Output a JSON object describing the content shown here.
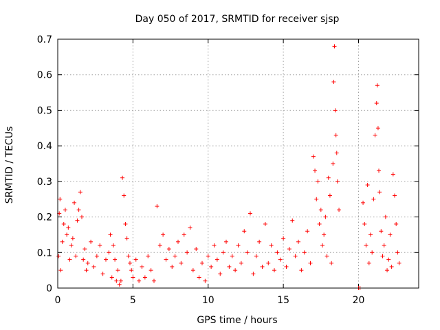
{
  "chart_data": {
    "type": "scatter",
    "title": "Day 050 of 2017, SRMTID for receiver sjsp",
    "xlabel": "GPS time / hours",
    "ylabel": "SRMTID / TECUs",
    "xlim": [
      0,
      24
    ],
    "ylim": [
      0,
      0.7
    ],
    "xticks": [
      0,
      5,
      10,
      15,
      20
    ],
    "yticks": [
      0,
      0.1,
      0.2,
      0.3,
      0.4,
      0.5,
      0.6,
      0.7
    ],
    "xtick_labels": [
      "0",
      "5",
      "10",
      "15",
      "20"
    ],
    "ytick_labels": [
      "0",
      "0.1",
      "0.2",
      "0.3",
      "0.4",
      "0.5",
      "0.6",
      "0.7"
    ],
    "marker": "+",
    "marker_color": "#ff0000",
    "grid": true,
    "series": [
      {
        "name": "SRMTID",
        "x": [
          0.05,
          0.1,
          0.15,
          0.2,
          0.3,
          0.4,
          0.5,
          0.6,
          0.7,
          0.8,
          0.9,
          1.0,
          1.1,
          1.2,
          1.3,
          1.4,
          1.5,
          1.6,
          1.7,
          1.8,
          1.9,
          2.0,
          2.2,
          2.4,
          2.6,
          2.8,
          3.0,
          3.2,
          3.4,
          3.5,
          3.6,
          3.7,
          3.8,
          3.9,
          4.0,
          4.1,
          4.2,
          4.3,
          4.4,
          4.5,
          4.6,
          4.7,
          4.8,
          4.9,
          5.0,
          5.2,
          5.4,
          5.6,
          5.8,
          6.0,
          6.2,
          6.4,
          6.6,
          6.8,
          7.0,
          7.2,
          7.4,
          7.6,
          7.8,
          8.0,
          8.2,
          8.4,
          8.6,
          8.8,
          9.0,
          9.2,
          9.4,
          9.6,
          9.8,
          10.0,
          10.2,
          10.4,
          10.6,
          10.8,
          11.0,
          11.2,
          11.4,
          11.6,
          11.8,
          12.0,
          12.2,
          12.4,
          12.6,
          12.8,
          13.0,
          13.2,
          13.4,
          13.6,
          13.8,
          14.0,
          14.2,
          14.4,
          14.6,
          14.8,
          15.0,
          15.2,
          15.4,
          15.6,
          15.8,
          16.0,
          16.2,
          16.4,
          16.6,
          16.8,
          17.0,
          17.1,
          17.2,
          17.3,
          17.4,
          17.5,
          17.6,
          17.7,
          17.8,
          17.9,
          18.0,
          18.1,
          18.2,
          18.3,
          18.35,
          18.4,
          18.45,
          18.5,
          18.55,
          18.6,
          18.7,
          20.0,
          20.1,
          20.3,
          20.4,
          20.5,
          20.6,
          20.7,
          20.8,
          20.9,
          21.0,
          21.1,
          21.2,
          21.25,
          21.3,
          21.35,
          21.4,
          21.5,
          21.6,
          21.7,
          21.8,
          21.9,
          22.0,
          22.1,
          22.2,
          22.3,
          22.4,
          22.5,
          22.6,
          22.7
        ],
        "y": [
          0.09,
          0.21,
          0.25,
          0.05,
          0.13,
          0.18,
          0.22,
          0.15,
          0.17,
          0.08,
          0.12,
          0.14,
          0.24,
          0.09,
          0.19,
          0.22,
          0.27,
          0.2,
          0.08,
          0.11,
          0.05,
          0.07,
          0.13,
          0.06,
          0.09,
          0.12,
          0.04,
          0.08,
          0.1,
          0.15,
          0.03,
          0.12,
          0.08,
          0.02,
          0.05,
          0.01,
          0.02,
          0.31,
          0.26,
          0.18,
          0.14,
          0.09,
          0.07,
          0.05,
          0.03,
          0.08,
          0.02,
          0.06,
          0.03,
          0.09,
          0.05,
          0.02,
          0.23,
          0.12,
          0.15,
          0.08,
          0.11,
          0.06,
          0.09,
          0.13,
          0.07,
          0.15,
          0.1,
          0.17,
          0.05,
          0.11,
          0.03,
          0.07,
          0.02,
          0.09,
          0.06,
          0.12,
          0.08,
          0.04,
          0.1,
          0.13,
          0.06,
          0.09,
          0.05,
          0.12,
          0.07,
          0.16,
          0.1,
          0.21,
          0.04,
          0.09,
          0.13,
          0.06,
          0.18,
          0.07,
          0.12,
          0.05,
          0.1,
          0.08,
          0.14,
          0.06,
          0.11,
          0.19,
          0.09,
          0.13,
          0.05,
          0.1,
          0.16,
          0.07,
          0.37,
          0.33,
          0.25,
          0.3,
          0.18,
          0.22,
          0.12,
          0.15,
          0.2,
          0.09,
          0.31,
          0.26,
          0.07,
          0.35,
          0.58,
          0.68,
          0.5,
          0.43,
          0.38,
          0.3,
          0.22,
          0.0,
          0.0,
          0.24,
          0.18,
          0.12,
          0.29,
          0.07,
          0.15,
          0.1,
          0.25,
          0.43,
          0.52,
          0.57,
          0.45,
          0.33,
          0.27,
          0.16,
          0.09,
          0.12,
          0.2,
          0.05,
          0.08,
          0.15,
          0.06,
          0.32,
          0.26,
          0.18,
          0.1,
          0.07
        ],
        "y_range_noted": "dense scatter between 0 and ~0.3 across the day with spikes near 4.3h (0.31), 18.4h (0.68) and 21.3h (0.57)"
      }
    ]
  }
}
